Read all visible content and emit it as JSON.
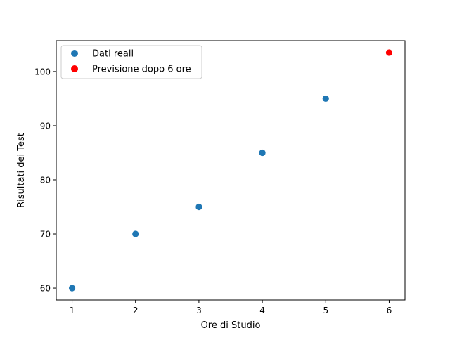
{
  "chart_data": {
    "type": "scatter",
    "title": "",
    "xlabel": "Ore di Studio",
    "ylabel": "Risultati dei Test",
    "xlim": [
      0.75,
      6.25
    ],
    "ylim": [
      57.8,
      105.7
    ],
    "xticks": [
      1,
      2,
      3,
      4,
      5,
      6
    ],
    "yticks": [
      60,
      70,
      80,
      90,
      100
    ],
    "grid": false,
    "legend_position": "top-left",
    "series": [
      {
        "name": "Dati reali",
        "color": "#1f77b4",
        "x": [
          1,
          2,
          3,
          4,
          5
        ],
        "y": [
          60,
          70,
          75,
          85,
          95
        ]
      },
      {
        "name": "Previsione dopo 6 ore",
        "color": "#ff0000",
        "x": [
          6
        ],
        "y": [
          103.5
        ]
      }
    ]
  }
}
